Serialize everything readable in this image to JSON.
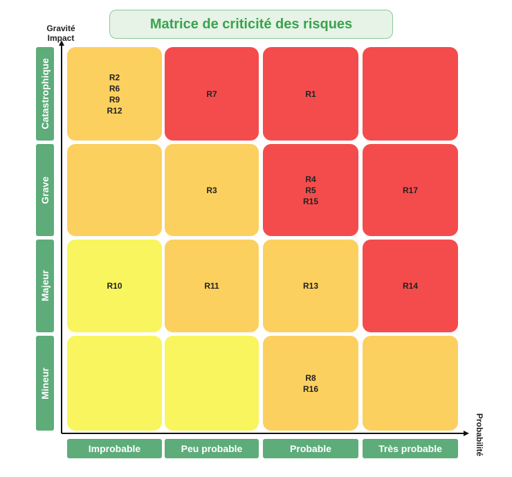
{
  "title": "Matrice de criticité des risques",
  "y_axis_label": "Gravité Impact",
  "x_axis_label": "Probabilité",
  "rows": [
    "Catastrophique",
    "Grave",
    "Majeur",
    "Mineur"
  ],
  "columns": [
    "Improbable",
    "Peu probable",
    "Probable",
    "Très probable"
  ],
  "colors": {
    "red": "#f44c4c",
    "orange": "#fcd05f",
    "yellow": "#f8f55e",
    "label_green": "#5dac7a",
    "title_green": "#3aa24f"
  },
  "cells": [
    [
      {
        "color": "orange",
        "risks": [
          "R2",
          "R6",
          "R9",
          "R12"
        ]
      },
      {
        "color": "red",
        "risks": [
          "R7"
        ]
      },
      {
        "color": "red",
        "risks": [
          "R1"
        ]
      },
      {
        "color": "red",
        "risks": []
      }
    ],
    [
      {
        "color": "orange",
        "risks": []
      },
      {
        "color": "orange",
        "risks": [
          "R3"
        ]
      },
      {
        "color": "red",
        "risks": [
          "R4",
          "R5",
          "R15"
        ]
      },
      {
        "color": "red",
        "risks": [
          "R17"
        ]
      }
    ],
    [
      {
        "color": "yellow",
        "risks": [
          "R10"
        ]
      },
      {
        "color": "orange",
        "risks": [
          "R11"
        ]
      },
      {
        "color": "orange",
        "risks": [
          "R13"
        ]
      },
      {
        "color": "red",
        "risks": [
          "R14"
        ]
      }
    ],
    [
      {
        "color": "yellow",
        "risks": []
      },
      {
        "color": "yellow",
        "risks": []
      },
      {
        "color": "orange",
        "risks": [
          "R8",
          "R16"
        ]
      },
      {
        "color": "orange",
        "risks": []
      }
    ]
  ]
}
